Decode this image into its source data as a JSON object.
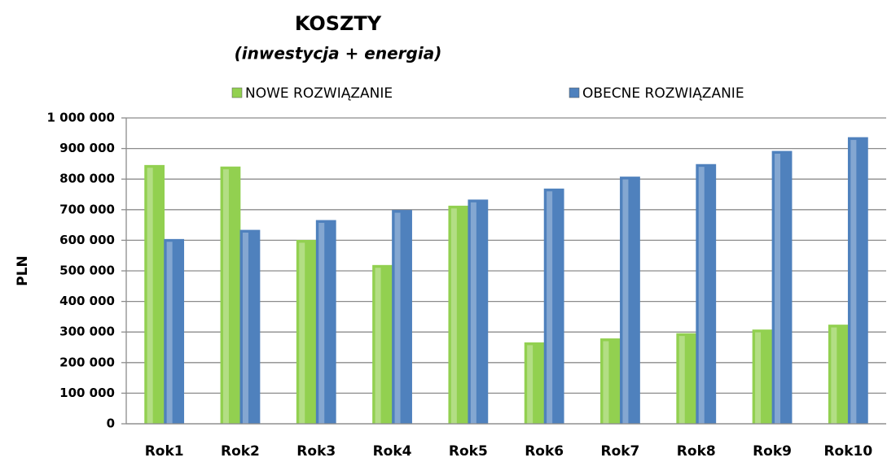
{
  "chart_data": {
    "type": "bar",
    "title": "KOSZTY",
    "subtitle": "(inwestycja + energia)",
    "y_label": "PLN",
    "categories": [
      "Rok1",
      "Rok2",
      "Rok3",
      "Rok4",
      "Rok5",
      "Rok6",
      "Rok7",
      "Rok8",
      "Rok9",
      "Rok10"
    ],
    "series": [
      {
        "name": "NOWE ROZWIĄZANIE",
        "color": "#92d050",
        "values": [
          845000,
          840000,
          600000,
          518000,
          712000,
          265000,
          278000,
          295000,
          307000,
          323000
        ]
      },
      {
        "name": "OBECNE ROZWIĄZANIE",
        "color": "#4f81bd",
        "values": [
          603000,
          633000,
          665000,
          698000,
          732000,
          768000,
          807000,
          848000,
          891000,
          936000
        ]
      }
    ],
    "ylim": [
      0,
      1000000
    ],
    "yticks": [
      0,
      {
        "value": 100000,
        "label": "100 000"
      },
      {
        "value": 200000,
        "label": "200 000"
      },
      {
        "value": 300000,
        "label": "300 000"
      },
      {
        "value": 400000,
        "label": "400 000"
      },
      {
        "value": 500000,
        "label": "500 000"
      },
      {
        "value": 600000,
        "label": "600 000"
      },
      {
        "value": 700000,
        "label": "700 000"
      },
      {
        "value": 800000,
        "label": "800 000"
      },
      {
        "value": 900000,
        "label": "900 000"
      },
      {
        "value": 1000000,
        "label": "1 000 000"
      }
    ],
    "grid": true,
    "legend": "top"
  }
}
